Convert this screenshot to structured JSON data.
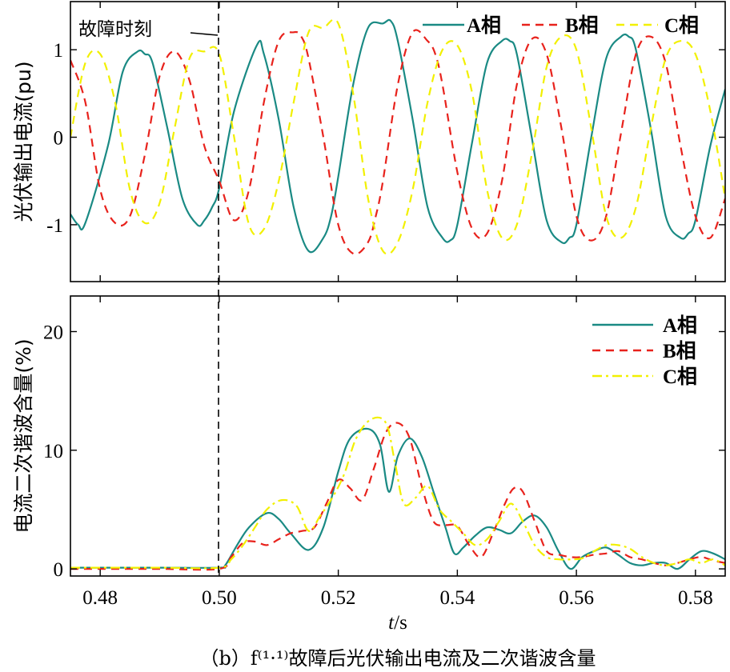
{
  "colors": {
    "A": "#1a8a84",
    "B": "#e8221c",
    "C": "#f2f000"
  },
  "annotation": "故障时刻",
  "caption": "（b）f⁽¹·¹⁾故障后光伏输出电流及二次谐波含量",
  "chart_data": [
    {
      "type": "line",
      "ylabel": "光伏输出电流(pu)",
      "xlim": [
        0.475,
        0.585
      ],
      "ylim": [
        -1.65,
        1.55
      ],
      "yticks": [
        "1",
        "0",
        "-1"
      ],
      "ytick_values": [
        1,
        0,
        -1
      ],
      "xticks_unlabeled": [
        0.48,
        0.5,
        0.52,
        0.54,
        0.56,
        0.58
      ],
      "fault_time": 0.5,
      "legend_position": "top",
      "legend": [
        "A相",
        "B相",
        "C相"
      ],
      "series": [
        {
          "name": "A相",
          "style": "solid",
          "x": [
            0.475,
            0.4763,
            0.4775,
            0.4813,
            0.4838,
            0.4863,
            0.4875,
            0.4888,
            0.4913,
            0.4938,
            0.4963,
            0.4975,
            0.4988,
            0.5,
            0.5025,
            0.5063,
            0.5075,
            0.51,
            0.5125,
            0.515,
            0.5175,
            0.5188,
            0.52,
            0.5225,
            0.525,
            0.5275,
            0.5288,
            0.53,
            0.5325,
            0.535,
            0.5375,
            0.5388,
            0.54,
            0.5425,
            0.545,
            0.5475,
            0.5488,
            0.55,
            0.5525,
            0.555,
            0.5575,
            0.5588,
            0.56,
            0.5625,
            0.565,
            0.5675,
            0.5688,
            0.57,
            0.5725,
            0.575,
            0.5775,
            0.5788,
            0.58,
            0.5825,
            0.585
          ],
          "y": [
            -0.88,
            -1.0,
            -0.98,
            -0.1,
            0.75,
            0.98,
            0.95,
            0.85,
            0.1,
            -0.7,
            -1.0,
            -0.95,
            -0.8,
            -0.58,
            0.3,
            1.05,
            0.95,
            0.2,
            -0.8,
            -1.3,
            -1.15,
            -0.9,
            -0.45,
            0.6,
            1.25,
            1.3,
            1.33,
            1.1,
            0.2,
            -0.8,
            -1.15,
            -1.18,
            -1.0,
            -0.05,
            0.85,
            1.1,
            1.1,
            0.95,
            0.0,
            -0.95,
            -1.2,
            -1.15,
            -1.0,
            0.0,
            0.9,
            1.15,
            1.15,
            1.0,
            0.1,
            -0.9,
            -1.15,
            -1.1,
            -0.95,
            -0.1,
            0.55
          ]
        },
        {
          "name": "B相",
          "style": "dashed",
          "x": [
            0.475,
            0.4775,
            0.48,
            0.4825,
            0.485,
            0.4875,
            0.49,
            0.4925,
            0.495,
            0.4975,
            0.5,
            0.5025,
            0.505,
            0.5075,
            0.51,
            0.5125,
            0.5138,
            0.515,
            0.5175,
            0.52,
            0.5225,
            0.525,
            0.5263,
            0.5275,
            0.53,
            0.5325,
            0.535,
            0.5363,
            0.5375,
            0.54,
            0.5425,
            0.545,
            0.5475,
            0.55,
            0.5525,
            0.555,
            0.5575,
            0.56,
            0.5625,
            0.565,
            0.5675,
            0.57,
            0.5725,
            0.575,
            0.5775,
            0.58,
            0.5825,
            0.585
          ],
          "y": [
            0.88,
            0.4,
            -0.6,
            -0.98,
            -0.9,
            -0.2,
            0.7,
            0.98,
            0.65,
            -0.1,
            -0.5,
            -0.95,
            -0.6,
            0.4,
            1.1,
            1.2,
            1.15,
            0.9,
            0.0,
            -1.0,
            -1.33,
            -1.2,
            -0.9,
            -0.5,
            0.6,
            1.2,
            1.1,
            0.95,
            0.6,
            -0.4,
            -1.05,
            -1.1,
            -0.5,
            0.6,
            1.12,
            0.95,
            0.1,
            -0.9,
            -1.18,
            -0.9,
            0.05,
            0.95,
            1.15,
            0.85,
            -0.1,
            -0.9,
            -1.15,
            -0.7
          ]
        },
        {
          "name": "C相",
          "style": "dashed",
          "x": [
            0.475,
            0.4775,
            0.48,
            0.4825,
            0.485,
            0.4875,
            0.49,
            0.4925,
            0.495,
            0.4975,
            0.5,
            0.5025,
            0.505,
            0.5075,
            0.51,
            0.5125,
            0.515,
            0.5175,
            0.52,
            0.5225,
            0.525,
            0.5275,
            0.53,
            0.5325,
            0.535,
            0.5375,
            0.54,
            0.5425,
            0.545,
            0.5475,
            0.55,
            0.5525,
            0.555,
            0.5575,
            0.56,
            0.5625,
            0.565,
            0.5675,
            0.57,
            0.5725,
            0.575,
            0.5775,
            0.58,
            0.5825,
            0.585
          ],
          "y": [
            0.0,
            0.85,
            0.95,
            0.4,
            -0.6,
            -0.98,
            -0.75,
            0.1,
            0.9,
            0.98,
            0.95,
            0.0,
            -1.0,
            -1.05,
            -0.5,
            0.4,
            1.2,
            1.25,
            1.3,
            0.5,
            -0.7,
            -1.3,
            -1.2,
            -0.6,
            0.4,
            1.0,
            1.05,
            0.5,
            -0.6,
            -1.15,
            -1.0,
            -0.2,
            0.8,
            1.15,
            1.0,
            0.1,
            -0.9,
            -1.15,
            -0.8,
            0.1,
            0.9,
            1.1,
            0.95,
            0.3,
            -0.7
          ]
        }
      ]
    },
    {
      "type": "line",
      "ylabel": "电流二次谐波含量(%)",
      "xlabel": "t/s",
      "xlabel_italic": "t",
      "xlabel_rest": "/s",
      "xlim": [
        0.475,
        0.585
      ],
      "ylim": [
        -0.6,
        23
      ],
      "xticks": [
        "0.48",
        "0.50",
        "0.52",
        "0.54",
        "0.56",
        "0.58"
      ],
      "xtick_values": [
        0.48,
        0.5,
        0.52,
        0.54,
        0.56,
        0.58
      ],
      "yticks": [
        "20",
        "10",
        "0"
      ],
      "ytick_values": [
        20,
        10,
        0
      ],
      "fault_time": 0.5,
      "legend_position": "top-right",
      "legend": [
        "A相",
        "B相",
        "C相"
      ],
      "series": [
        {
          "name": "A相",
          "style": "solid",
          "x": [
            0.475,
            0.48,
            0.49,
            0.5,
            0.501,
            0.503,
            0.505,
            0.508,
            0.51,
            0.512,
            0.515,
            0.5175,
            0.52,
            0.522,
            0.525,
            0.527,
            0.5285,
            0.53,
            0.532,
            0.534,
            0.536,
            0.538,
            0.5395,
            0.541,
            0.543,
            0.545,
            0.547,
            0.549,
            0.551,
            0.553,
            0.555,
            0.557,
            0.559,
            0.561,
            0.563,
            0.565,
            0.567,
            0.569,
            0.571,
            0.573,
            0.575,
            0.577,
            0.579,
            0.581,
            0.583,
            0.585
          ],
          "y": [
            0.1,
            0.1,
            0.1,
            0.1,
            0.3,
            2.0,
            3.5,
            4.7,
            4.2,
            3.0,
            1.6,
            3.5,
            8.2,
            11.0,
            11.8,
            10.5,
            6.5,
            9.5,
            11.0,
            9.5,
            6.5,
            3.5,
            1.3,
            1.8,
            2.8,
            3.5,
            3.3,
            3.0,
            4.0,
            4.5,
            3.5,
            1.5,
            0.0,
            1.0,
            1.5,
            1.8,
            1.2,
            0.5,
            0.3,
            0.5,
            0.5,
            0.0,
            0.8,
            1.5,
            1.3,
            0.8
          ]
        },
        {
          "name": "B相",
          "style": "dashed",
          "x": [
            0.475,
            0.48,
            0.49,
            0.5,
            0.502,
            0.504,
            0.506,
            0.508,
            0.51,
            0.512,
            0.514,
            0.516,
            0.518,
            0.52,
            0.522,
            0.524,
            0.526,
            0.528,
            0.53,
            0.532,
            0.534,
            0.536,
            0.538,
            0.54,
            0.542,
            0.544,
            0.546,
            0.548,
            0.5495,
            0.551,
            0.553,
            0.555,
            0.557,
            0.559,
            0.561,
            0.563,
            0.565,
            0.567,
            0.569,
            0.571,
            0.573,
            0.575,
            0.577,
            0.579,
            0.581,
            0.583,
            0.585
          ],
          "y": [
            0.0,
            0.0,
            0.0,
            0.0,
            1.0,
            2.2,
            2.3,
            2.0,
            2.5,
            3.0,
            3.2,
            3.5,
            5.5,
            7.5,
            6.8,
            5.8,
            8.5,
            11.5,
            12.3,
            11.0,
            7.0,
            4.0,
            3.7,
            3.6,
            2.0,
            1.0,
            3.0,
            5.5,
            6.8,
            6.5,
            4.0,
            1.5,
            1.2,
            1.0,
            1.0,
            1.2,
            1.3,
            1.5,
            1.0,
            0.8,
            0.5,
            0.3,
            0.5,
            0.8,
            1.0,
            0.7,
            0.5
          ]
        },
        {
          "name": "C相",
          "style": "dashdot",
          "x": [
            0.475,
            0.48,
            0.49,
            0.5,
            0.502,
            0.504,
            0.506,
            0.508,
            0.5105,
            0.513,
            0.515,
            0.517,
            0.519,
            0.521,
            0.523,
            0.5255,
            0.528,
            0.5295,
            0.531,
            0.533,
            0.535,
            0.537,
            0.539,
            0.541,
            0.543,
            0.545,
            0.547,
            0.549,
            0.551,
            0.553,
            0.555,
            0.557,
            0.559,
            0.561,
            0.563,
            0.565,
            0.567,
            0.569,
            0.571,
            0.573,
            0.575,
            0.577,
            0.579,
            0.581,
            0.583,
            0.585
          ],
          "y": [
            0.1,
            0.1,
            0.1,
            0.1,
            0.8,
            2.0,
            3.5,
            5.0,
            5.8,
            5.3,
            3.2,
            4.5,
            6.0,
            8.0,
            11.0,
            12.6,
            12.3,
            9.0,
            5.5,
            6.0,
            7.0,
            5.0,
            4.0,
            3.0,
            2.0,
            2.5,
            4.0,
            5.5,
            4.0,
            2.0,
            1.0,
            0.8,
            0.8,
            0.9,
            1.5,
            2.0,
            2.0,
            1.7,
            1.0,
            0.5,
            0.3,
            0.5,
            0.8,
            0.5,
            0.8,
            0.3
          ]
        }
      ]
    }
  ]
}
